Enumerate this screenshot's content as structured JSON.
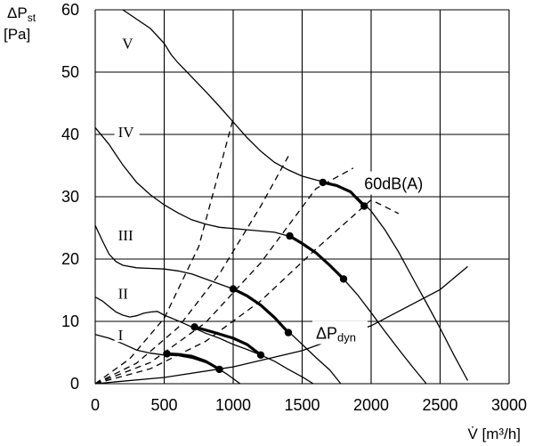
{
  "chart_data": {
    "type": "line",
    "ylabel_lines": [
      "ΔPst",
      "[Pa]"
    ],
    "xlabel": "V̇ [m³/h]",
    "xlim": [
      0,
      3000
    ],
    "ylim": [
      0,
      60
    ],
    "x_ticks": [
      0,
      500,
      1000,
      1500,
      2000,
      2500,
      3000
    ],
    "y_ticks": [
      0,
      10,
      20,
      30,
      40,
      50,
      60
    ],
    "grid": true,
    "series": [
      {
        "name": "I",
        "points": [
          [
            0,
            7.9
          ],
          [
            100,
            7.3
          ],
          [
            200,
            6.4
          ],
          [
            300,
            5.4
          ],
          [
            400,
            4.9
          ],
          [
            500,
            4.6
          ],
          [
            600,
            4.5
          ],
          [
            700,
            4.1
          ],
          [
            800,
            3.4
          ],
          [
            900,
            2.3
          ],
          [
            950,
            1.6
          ],
          [
            1000,
            0.8
          ],
          [
            1050,
            0
          ]
        ]
      },
      {
        "name": "II",
        "points": [
          [
            0,
            13.9
          ],
          [
            50,
            13.3
          ],
          [
            100,
            12.4
          ],
          [
            150,
            11.5
          ],
          [
            200,
            11.0
          ],
          [
            250,
            10.7
          ],
          [
            300,
            10.9
          ],
          [
            350,
            11.3
          ],
          [
            400,
            11.5
          ],
          [
            450,
            11.6
          ],
          [
            500,
            11.0
          ],
          [
            600,
            10.1
          ],
          [
            700,
            9.1
          ],
          [
            800,
            8.1
          ],
          [
            900,
            7.3
          ],
          [
            1000,
            6.3
          ],
          [
            1100,
            5.5
          ],
          [
            1200,
            4.6
          ],
          [
            1300,
            3.6
          ],
          [
            1400,
            2.3
          ],
          [
            1500,
            1.1
          ],
          [
            1580,
            0
          ]
        ]
      },
      {
        "name": "III",
        "points": [
          [
            0,
            25.4
          ],
          [
            50,
            23.0
          ],
          [
            100,
            20.8
          ],
          [
            150,
            19.6
          ],
          [
            200,
            19.0
          ],
          [
            300,
            18.6
          ],
          [
            400,
            18.5
          ],
          [
            500,
            18.4
          ],
          [
            600,
            18.1
          ],
          [
            700,
            17.6
          ],
          [
            800,
            16.8
          ],
          [
            900,
            16.0
          ],
          [
            1000,
            15.2
          ],
          [
            1100,
            14.1
          ],
          [
            1200,
            12.6
          ],
          [
            1300,
            10.6
          ],
          [
            1400,
            8.4
          ],
          [
            1500,
            6.3
          ],
          [
            1600,
            4.2
          ],
          [
            1700,
            2.2
          ],
          [
            1780,
            0
          ]
        ]
      },
      {
        "name": "IV",
        "points": [
          [
            0,
            41.1
          ],
          [
            100,
            38.4
          ],
          [
            200,
            35.1
          ],
          [
            300,
            32.3
          ],
          [
            400,
            30.3
          ],
          [
            500,
            28.7
          ],
          [
            600,
            27.4
          ],
          [
            700,
            26.3
          ],
          [
            800,
            25.6
          ],
          [
            900,
            25.1
          ],
          [
            1000,
            24.9
          ],
          [
            1100,
            24.7
          ],
          [
            1200,
            24.5
          ],
          [
            1300,
            24.3
          ],
          [
            1400,
            23.7
          ],
          [
            1500,
            22.5
          ],
          [
            1600,
            21.0
          ],
          [
            1700,
            19.0
          ],
          [
            1800,
            16.8
          ],
          [
            1900,
            14.3
          ],
          [
            2000,
            11.4
          ],
          [
            2100,
            8.4
          ],
          [
            2200,
            5.5
          ],
          [
            2300,
            2.7
          ],
          [
            2400,
            0
          ]
        ]
      },
      {
        "name": "V",
        "points": [
          [
            200,
            60
          ],
          [
            400,
            57.0
          ],
          [
            500,
            54.6
          ],
          [
            550,
            52.8
          ],
          [
            600,
            51.5
          ],
          [
            700,
            49.2
          ],
          [
            800,
            46.9
          ],
          [
            900,
            44.5
          ],
          [
            1000,
            42.0
          ],
          [
            1100,
            39.5
          ],
          [
            1200,
            37.3
          ],
          [
            1300,
            35.5
          ],
          [
            1400,
            34.3
          ],
          [
            1500,
            33.3
          ],
          [
            1600,
            32.7
          ],
          [
            1700,
            32.2
          ],
          [
            1800,
            31.4
          ],
          [
            1900,
            29.9
          ],
          [
            2000,
            27.7
          ],
          [
            2100,
            24.7
          ],
          [
            2200,
            21.1
          ],
          [
            2300,
            17.0
          ],
          [
            2400,
            13.0
          ],
          [
            2500,
            8.9
          ],
          [
            2600,
            4.6
          ],
          [
            2700,
            0.5
          ]
        ]
      }
    ],
    "system_curves": [
      [
        [
          0,
          0
        ],
        [
          250,
          4.0
        ],
        [
          500,
          10.5
        ],
        [
          750,
          22.0
        ],
        [
          1000,
          42.5
        ]
      ],
      [
        [
          0,
          0
        ],
        [
          300,
          3.3
        ],
        [
          600,
          9.0
        ],
        [
          900,
          17.6
        ],
        [
          1200,
          28.5
        ],
        [
          1400,
          36.5
        ]
      ],
      [
        [
          0,
          0
        ],
        [
          400,
          3.4
        ],
        [
          800,
          9.8
        ],
        [
          1200,
          19.4
        ],
        [
          1600,
          31.3
        ],
        [
          1870,
          34.6
        ]
      ],
      [
        [
          0,
          0
        ],
        [
          400,
          2.4
        ],
        [
          800,
          6.8
        ],
        [
          1200,
          13.3
        ],
        [
          1600,
          21.6
        ],
        [
          2000,
          29.5
        ],
        [
          2200,
          27.3
        ]
      ]
    ],
    "dynamic_pressure_curve": [
      [
        0,
        0
      ],
      [
        500,
        1.0
      ],
      [
        1000,
        2.7
      ],
      [
        1500,
        5.3
      ],
      [
        2000,
        9.3
      ],
      [
        2500,
        15.1
      ],
      [
        2700,
        18.8
      ]
    ],
    "iso_noise_lines": [
      [
        [
          520,
          4.8
        ],
        [
          600,
          4.7
        ],
        [
          700,
          4.4
        ],
        [
          800,
          3.6
        ],
        [
          900,
          2.3
        ]
      ],
      [
        [
          720,
          9.1
        ],
        [
          850,
          8.3
        ],
        [
          1000,
          7.3
        ],
        [
          1100,
          6.3
        ],
        [
          1200,
          4.6
        ]
      ],
      [
        [
          1000,
          15.2
        ],
        [
          1100,
          14.1
        ],
        [
          1200,
          12.6
        ],
        [
          1300,
          10.6
        ],
        [
          1400,
          8.2
        ]
      ],
      [
        [
          1410,
          23.7
        ],
        [
          1500,
          22.5
        ],
        [
          1600,
          21.0
        ],
        [
          1700,
          19.0
        ],
        [
          1800,
          16.8
        ]
      ],
      [
        [
          1650,
          32.3
        ],
        [
          1750,
          31.8
        ],
        [
          1850,
          30.8
        ],
        [
          1950,
          28.5
        ]
      ]
    ],
    "iso_noise_points": [
      [
        520,
        4.8
      ],
      [
        900,
        2.3
      ],
      [
        720,
        9.1
      ],
      [
        1200,
        4.6
      ],
      [
        1000,
        15.2
      ],
      [
        1400,
        8.2
      ],
      [
        1410,
        23.7
      ],
      [
        1800,
        16.8
      ],
      [
        1650,
        32.3
      ],
      [
        1950,
        28.5
      ]
    ],
    "annotations": {
      "noise": {
        "text": "60dB(A)",
        "x": 1950,
        "y": 31.2
      },
      "dynamic": {
        "text": "ΔPdyn",
        "x": 1600,
        "y": 7.2
      }
    },
    "roman_labels": [
      {
        "text": "I",
        "x": 230,
        "y": 7.4
      },
      {
        "text": "II",
        "x": 230,
        "y": 14.1
      },
      {
        "text": "III",
        "x": 230,
        "y": 23.4
      },
      {
        "text": "IV",
        "x": 230,
        "y": 40.0
      },
      {
        "text": "V",
        "x": 260,
        "y": 54.2
      }
    ]
  }
}
